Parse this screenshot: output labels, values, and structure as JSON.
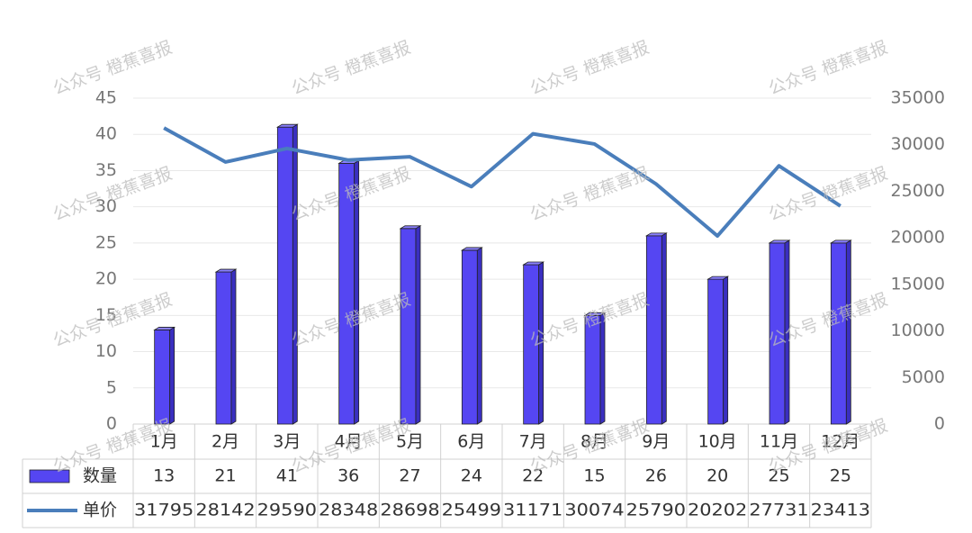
{
  "chart_data": {
    "type": "bar",
    "categories": [
      "1月",
      "2月",
      "3月",
      "4月",
      "5月",
      "6月",
      "7月",
      "8月",
      "9月",
      "10月",
      "11月",
      "12月"
    ],
    "series": [
      {
        "name": "数量",
        "type": "bar",
        "color": "#5546f2",
        "values": [
          13,
          21,
          41,
          36,
          27,
          24,
          22,
          15,
          26,
          20,
          25,
          25
        ]
      },
      {
        "name": "单价",
        "type": "line",
        "axis": "y2",
        "color": "#4a7ebb",
        "values": [
          31795,
          28142,
          29590,
          28348,
          28698,
          25499,
          31171,
          30074,
          25790,
          20202,
          27731,
          23413
        ]
      }
    ],
    "ylim": [
      0,
      45
    ],
    "yticks": [
      0,
      5,
      10,
      15,
      20,
      25,
      30,
      35,
      40,
      45
    ],
    "y2lim": [
      0,
      35000
    ],
    "y2ticks": [
      0,
      5000,
      10000,
      15000,
      20000,
      25000,
      30000,
      35000
    ],
    "grid": true,
    "watermark": "公众号 橙蕉喜报"
  }
}
